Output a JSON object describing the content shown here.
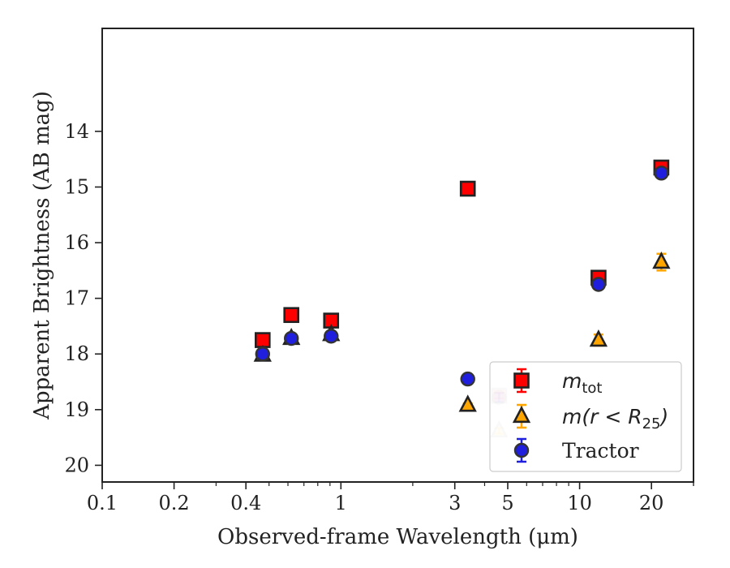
{
  "chart_data": {
    "type": "scatter",
    "xlabel": "Observed-frame Wavelength (μm)",
    "ylabel": "Apparent Brightness (AB mag)",
    "xscale": "log",
    "xlim": [
      0.1,
      30
    ],
    "ylim": [
      20.3,
      12.15
    ],
    "y_inverted": true,
    "x_ticks": [
      0.1,
      0.2,
      0.4,
      1,
      3,
      5,
      10,
      20
    ],
    "x_tick_labels": [
      "0.1",
      "0.2",
      "0.4",
      "1",
      "3",
      "5",
      "10",
      "20"
    ],
    "y_ticks": [
      14,
      15,
      16,
      17,
      18,
      19,
      20
    ],
    "y_tick_labels": [
      "14",
      "15",
      "16",
      "17",
      "18",
      "19",
      "20"
    ],
    "legend": {
      "placement": "lower-right",
      "entries": [
        {
          "label_main": "m",
          "label_sub": "tot",
          "marker": "square",
          "color": "#ff0000"
        },
        {
          "label_main": "m(r < R",
          "label_sub": "25",
          "label_tail": ")",
          "marker": "triangle",
          "color": "#ffa500"
        },
        {
          "label_main": "Tractor",
          "label_sub": "",
          "marker": "circle",
          "color": "#1f1fdd"
        }
      ]
    },
    "series": [
      {
        "name": "m_tot",
        "marker": "square",
        "color": "#ff0000",
        "points": [
          {
            "x": 0.47,
            "y": 17.75,
            "err": 0.02
          },
          {
            "x": 0.62,
            "y": 17.3,
            "err": 0.02
          },
          {
            "x": 0.91,
            "y": 17.4,
            "err": 0.02
          },
          {
            "x": 3.4,
            "y": 15.03,
            "err": 0.02
          },
          {
            "x": 4.6,
            "y": 18.75,
            "err": 0.05,
            "faded": true
          },
          {
            "x": 12.0,
            "y": 16.63,
            "err": 0.05
          },
          {
            "x": 22.0,
            "y": 14.65,
            "err": 0.05
          }
        ]
      },
      {
        "name": "m(r < R25)",
        "marker": "triangle",
        "color": "#ffa500",
        "points": [
          {
            "x": 0.47,
            "y": 18.02,
            "err": 0.02
          },
          {
            "x": 0.62,
            "y": 17.72,
            "err": 0.02
          },
          {
            "x": 0.91,
            "y": 17.65,
            "err": 0.02
          },
          {
            "x": 3.4,
            "y": 18.92,
            "err": 0.03
          },
          {
            "x": 4.6,
            "y": 19.38,
            "err": 0.05,
            "faded": true
          },
          {
            "x": 12.0,
            "y": 17.75,
            "err": 0.1
          },
          {
            "x": 22.0,
            "y": 16.35,
            "err": 0.15
          }
        ]
      },
      {
        "name": "Tractor",
        "marker": "circle",
        "color": "#1f1fdd",
        "points": [
          {
            "x": 0.47,
            "y": 18.0,
            "err": 0.02
          },
          {
            "x": 0.62,
            "y": 17.72,
            "err": 0.02
          },
          {
            "x": 0.91,
            "y": 17.68,
            "err": 0.02
          },
          {
            "x": 3.4,
            "y": 18.45,
            "err": 0.08
          },
          {
            "x": 4.6,
            "y": 18.78,
            "err": 0.08,
            "faded": true
          },
          {
            "x": 12.0,
            "y": 16.75,
            "err": 0.05
          },
          {
            "x": 22.0,
            "y": 14.75,
            "err": 0.05
          }
        ]
      }
    ]
  }
}
